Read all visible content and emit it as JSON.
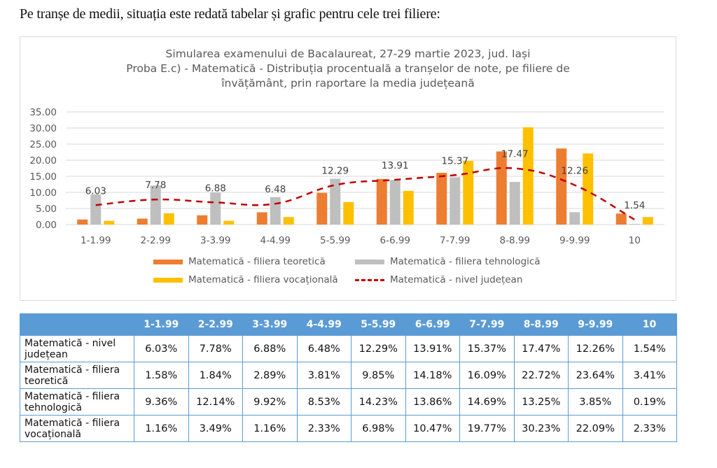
{
  "intro_text": "Pe tranșe de medii, situația este redată tabelar și grafic pentru cele trei filiere:",
  "chart_data": {
    "type": "bar",
    "title_lines": [
      "Simularea examenului de Bacalaureat, 27-29 martie 2023, jud. Iași",
      "Proba E.c) - Matematică - Distribuția procentuală a tranșelor de note, pe filiere de",
      "învățământ, prin raportare la media județeană"
    ],
    "categories": [
      "1-1.99",
      "2-2.99",
      "3-3.99",
      "4-4.99",
      "5-5.99",
      "6-6.99",
      "7-7.99",
      "8-8.99",
      "9-9.99",
      "10"
    ],
    "series": [
      {
        "name": "Matematică - filiera teoretică",
        "type": "bar",
        "color": "#ed7d31",
        "values": [
          1.58,
          1.84,
          2.89,
          3.81,
          9.85,
          14.18,
          16.09,
          22.72,
          23.64,
          3.41
        ]
      },
      {
        "name": "Matematică - filiera tehnologică",
        "type": "bar",
        "color": "#bfbfbf",
        "values": [
          9.36,
          12.14,
          9.92,
          8.53,
          14.23,
          13.86,
          14.69,
          13.25,
          3.85,
          0.19
        ]
      },
      {
        "name": "Matematică - filiera vocațională",
        "type": "bar",
        "color": "#ffc000",
        "values": [
          1.16,
          3.49,
          1.16,
          2.33,
          6.98,
          10.47,
          19.77,
          30.23,
          22.09,
          2.33
        ]
      },
      {
        "name": "Matematică - nivel județean",
        "type": "line",
        "style": "dashed",
        "color": "#c00000",
        "values": [
          6.03,
          7.78,
          6.88,
          6.48,
          12.29,
          13.91,
          15.37,
          17.47,
          12.26,
          1.54
        ],
        "data_labels": [
          "6.03",
          "7.78",
          "6.88",
          "6.48",
          "12.29",
          "13.91",
          "15.37",
          "17.47",
          "12.26",
          "1.54"
        ]
      }
    ],
    "y_ticks": [
      "0.00",
      "5.00",
      "10.00",
      "15.00",
      "20.00",
      "25.00",
      "30.00",
      "35.00"
    ],
    "ylim": [
      0,
      35
    ],
    "xlabel": "",
    "ylabel": "",
    "grid": true,
    "legend_position": "bottom"
  },
  "table": {
    "headers": [
      "",
      "1-1.99",
      "2-2.99",
      "3-3.99",
      "4-4.99",
      "5-5.99",
      "6-6.99",
      "7-7.99",
      "8-8.99",
      "9-9.99",
      "10"
    ],
    "rows": [
      {
        "label": "Matematică - nivel județean",
        "cells": [
          "6.03%",
          "7.78%",
          "6.88%",
          "6.48%",
          "12.29%",
          "13.91%",
          "15.37%",
          "17.47%",
          "12.26%",
          "1.54%"
        ]
      },
      {
        "label": "Matematică - filiera teoretică",
        "cells": [
          "1.58%",
          "1.84%",
          "2.89%",
          "3.81%",
          "9.85%",
          "14.18%",
          "16.09%",
          "22.72%",
          "23.64%",
          "3.41%"
        ]
      },
      {
        "label": "Matematică - filiera tehnologică",
        "cells": [
          "9.36%",
          "12.14%",
          "9.92%",
          "8.53%",
          "14.23%",
          "13.86%",
          "14.69%",
          "13.25%",
          "3.85%",
          "0.19%"
        ]
      },
      {
        "label": "Matematică - filiera vocațională",
        "cells": [
          "1.16%",
          "3.49%",
          "1.16%",
          "2.33%",
          "6.98%",
          "10.47%",
          "19.77%",
          "30.23%",
          "22.09%",
          "2.33%"
        ]
      }
    ]
  }
}
